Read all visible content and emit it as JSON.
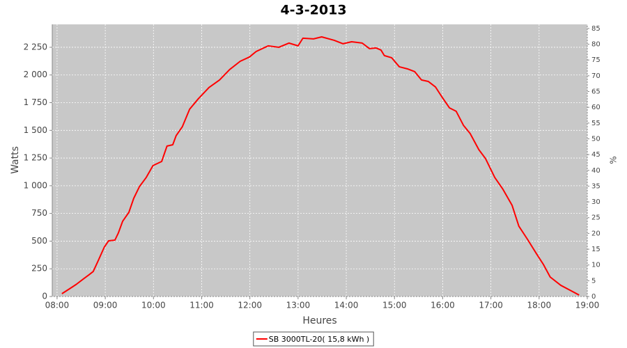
{
  "chart_data": {
    "type": "line",
    "title": "4-3-2013",
    "x_label": "Heures",
    "y_label": "Watts",
    "y2_label": "%",
    "x": [
      8.1,
      8.26,
      8.4,
      8.55,
      8.66,
      8.75,
      8.85,
      8.98,
      9.07,
      9.2,
      9.27,
      9.36,
      9.49,
      9.59,
      9.71,
      9.85,
      9.99,
      10.17,
      10.28,
      10.4,
      10.47,
      10.6,
      10.75,
      10.93,
      11.15,
      11.37,
      11.58,
      11.8,
      11.99,
      12.13,
      12.38,
      12.6,
      12.81,
      13.0,
      13.1,
      13.32,
      13.49,
      13.75,
      13.93,
      14.11,
      14.33,
      14.48,
      14.62,
      14.72,
      14.79,
      14.94,
      15.1,
      15.27,
      15.42,
      15.56,
      15.7,
      15.85,
      15.99,
      16.14,
      16.28,
      16.43,
      16.57,
      16.75,
      16.89,
      17.08,
      17.25,
      17.44,
      17.58,
      17.77,
      17.95,
      18.09,
      18.23,
      18.45,
      18.67,
      18.83
    ],
    "series": [
      {
        "name": "SB 3000TL-20( 15,8 kWh )",
        "color": "#ff0000",
        "values": [
          25,
          70,
          110,
          160,
          195,
          226,
          320,
          446,
          503,
          509,
          572,
          679,
          760,
          886,
          993,
          1075,
          1182,
          1219,
          1358,
          1370,
          1452,
          1534,
          1691,
          1785,
          1886,
          1955,
          2049,
          2124,
          2162,
          2212,
          2263,
          2250,
          2288,
          2263,
          2332,
          2326,
          2344,
          2313,
          2282,
          2300,
          2288,
          2238,
          2244,
          2225,
          2175,
          2156,
          2074,
          2055,
          2030,
          1955,
          1942,
          1892,
          1798,
          1703,
          1672,
          1546,
          1471,
          1326,
          1244,
          1075,
          968,
          823,
          635,
          509,
          383,
          289,
          176,
          101,
          50,
          13
        ]
      }
    ],
    "xlim": [
      7.9,
      19.0
    ],
    "xticks": [
      {
        "value": 8,
        "label": "08:00"
      },
      {
        "value": 9,
        "label": "09:00"
      },
      {
        "value": 10,
        "label": "10:00"
      },
      {
        "value": 11,
        "label": "11:00"
      },
      {
        "value": 12,
        "label": "12:00"
      },
      {
        "value": 13,
        "label": "13:00"
      },
      {
        "value": 14,
        "label": "14:00"
      },
      {
        "value": 15,
        "label": "15:00"
      },
      {
        "value": 16,
        "label": "16:00"
      },
      {
        "value": 17,
        "label": "17:00"
      },
      {
        "value": 18,
        "label": "18:00"
      },
      {
        "value": 19,
        "label": "19:00"
      }
    ],
    "ylim": [
      0,
      2457
    ],
    "yticks": [
      0,
      250,
      500,
      750,
      {
        "value": 1000,
        "label": "1 000"
      },
      {
        "value": 1250,
        "label": "1 250"
      },
      {
        "value": 1500,
        "label": "1 500"
      },
      {
        "value": 1750,
        "label": "1 750"
      },
      {
        "value": 2000,
        "label": "2 000"
      },
      {
        "value": 2250,
        "label": "2 250"
      }
    ],
    "y2lim": [
      0,
      86.3
    ],
    "y2ticks": [
      0,
      5,
      10,
      15,
      20,
      25,
      30,
      35,
      40,
      45,
      50,
      55,
      60,
      65,
      70,
      75,
      80,
      85
    ],
    "grid": true,
    "legend": "bottom"
  }
}
